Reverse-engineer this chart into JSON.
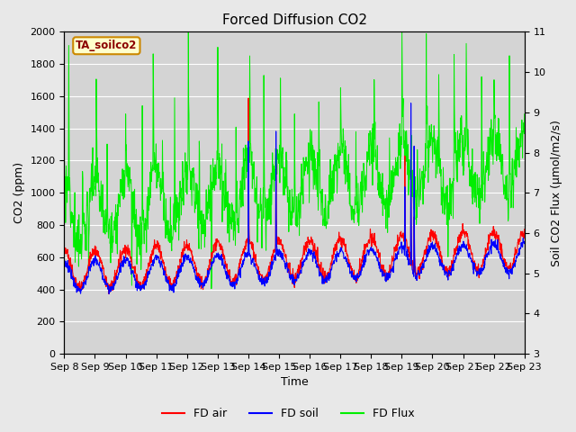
{
  "title": "Forced Diffusion CO2",
  "xlabel": "Time",
  "ylabel_left": "CO2 (ppm)",
  "ylabel_right": "Soil CO2 Flux (μmol/m2/s)",
  "legend_label": "TA_soilco2",
  "ylim_left": [
    0,
    2000
  ],
  "ylim_right": [
    3.0,
    11.0
  ],
  "yticks_left": [
    0,
    200,
    400,
    600,
    800,
    1000,
    1200,
    1400,
    1600,
    1800,
    2000
  ],
  "yticks_right": [
    3.0,
    4.0,
    5.0,
    6.0,
    7.0,
    8.0,
    9.0,
    10.0,
    11.0
  ],
  "xtick_labels": [
    "Sep 8",
    "Sep 9",
    "Sep 10",
    "Sep 11",
    "Sep 12",
    "Sep 13",
    "Sep 14",
    "Sep 15",
    "Sep 16",
    "Sep 17",
    "Sep 18",
    "Sep 19",
    "Sep 20",
    "Sep 21",
    "Sep 22",
    "Sep 23"
  ],
  "fig_bg_color": "#e8e8e8",
  "plot_bg_color": "#d4d4d4",
  "line_colors": {
    "fd_air": "red",
    "fd_soil": "blue",
    "fd_flux": "#00ee00"
  },
  "legend_entries": [
    "FD air",
    "FD soil",
    "FD Flux"
  ],
  "title_fontsize": 11,
  "axis_fontsize": 9,
  "tick_fontsize": 8
}
